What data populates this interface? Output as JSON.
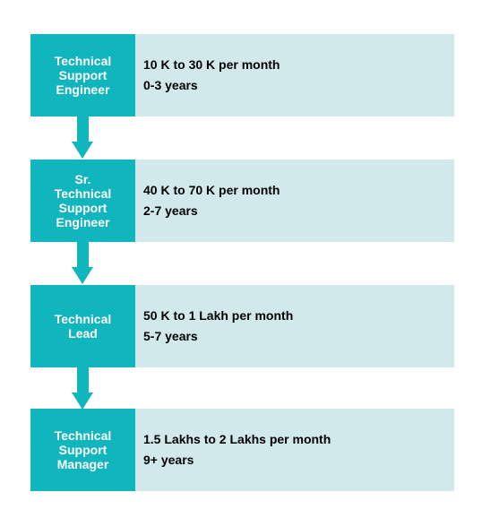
{
  "colors": {
    "role_box": "#11b5bd",
    "info_box": "#d2e9eb",
    "arrow": "#11b5bd"
  },
  "stages": [
    {
      "role": "Technical\nSupport\nEngineer",
      "salary": "10 K to 30 K per month",
      "experience": "0-3 years"
    },
    {
      "role": "Sr.\nTechnical\nSupport\nEngineer",
      "salary": "40 K to 70 K per month",
      "experience": "2-7 years"
    },
    {
      "role": "Technical\nLead",
      "salary": "50 K to 1 Lakh per month",
      "experience": "5-7 years"
    },
    {
      "role": "Technical\nSupport\nManager",
      "salary": "1.5 Lakhs to 2 Lakhs per month",
      "experience": "9+ years"
    }
  ]
}
